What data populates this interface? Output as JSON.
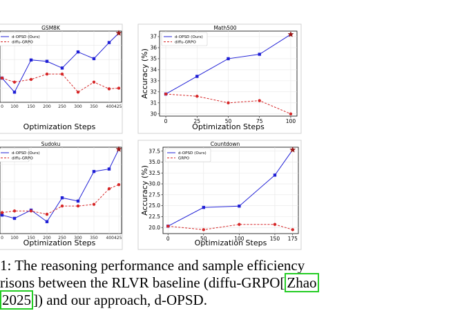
{
  "chart_data": [
    {
      "type": "line",
      "title": "GSM8K",
      "xlabel": "Optimization Steps",
      "ylabel": "",
      "xticks": [
        "0",
        "100",
        "150",
        "200",
        "250",
        "300",
        "350",
        "400",
        "425"
      ],
      "visible_xtick_labels": [
        "0",
        "100",
        "150",
        "200",
        "250",
        "300",
        "350",
        "400425"
      ],
      "xlim": [
        0,
        425
      ],
      "ylim": [
        0,
        100
      ],
      "legend": {
        "placement": "top-left",
        "entries": [
          "d-OPSD (Ours)",
          "diffu-GRPO"
        ]
      },
      "grid": true,
      "series": [
        {
          "name": "d-OPSD (Ours)",
          "color": "#1f1fd6",
          "style": "solid",
          "marker": "square",
          "x": [
            0,
            100,
            150,
            200,
            250,
            300,
            350,
            400,
            425
          ],
          "y": [
            33,
            12,
            60,
            58,
            48,
            72,
            62,
            86,
            100
          ]
        },
        {
          "name": "diffu-GRPO",
          "color": "#d62728",
          "style": "dashed",
          "marker": "circle",
          "x": [
            0,
            100,
            150,
            200,
            250,
            300,
            350,
            400,
            425
          ],
          "y": [
            33,
            27,
            31,
            39,
            39,
            12,
            27,
            17,
            18
          ]
        }
      ]
    },
    {
      "type": "line",
      "title": "Math500",
      "xlabel": "Optimization Steps",
      "ylabel": "Accuracy (%)",
      "xticks": [
        0,
        25,
        50,
        75,
        100
      ],
      "yticks": [
        30,
        31,
        32,
        33,
        34,
        35,
        36,
        37
      ],
      "xlim": [
        -5,
        105
      ],
      "ylim": [
        29.8,
        37.5
      ],
      "legend": {
        "placement": "top-left",
        "entries": [
          "d-OPSD (Ours)",
          "diffu-GRPO"
        ]
      },
      "grid": true,
      "series": [
        {
          "name": "d-OPSD (Ours)",
          "color": "#1f1fd6",
          "style": "solid",
          "marker": "square",
          "x": [
            0,
            25,
            50,
            75,
            100
          ],
          "y": [
            31.8,
            33.4,
            35.0,
            35.4,
            37.2
          ]
        },
        {
          "name": "diffu-GRPO",
          "color": "#d62728",
          "style": "dashed",
          "marker": "circle",
          "x": [
            0,
            25,
            50,
            75,
            100
          ],
          "y": [
            31.8,
            31.6,
            31.0,
            31.2,
            30.0
          ]
        }
      ]
    },
    {
      "type": "line",
      "title": "Sudoku",
      "xlabel": "Optimization Steps",
      "ylabel": "",
      "xticks": [
        "0",
        "100",
        "150",
        "200",
        "250",
        "300",
        "350",
        "400",
        "425"
      ],
      "visible_xtick_labels": [
        "0",
        "100",
        "150",
        "200",
        "250",
        "300",
        "350",
        "400425"
      ],
      "xlim": [
        0,
        425
      ],
      "ylim": [
        0,
        100
      ],
      "legend": {
        "placement": "top-left",
        "entries": [
          "d-OPSD (Ours)",
          "diffu-GRPO"
        ]
      },
      "grid": true,
      "series": [
        {
          "name": "d-OPSD (Ours)",
          "color": "#1f1fd6",
          "style": "solid",
          "marker": "square",
          "x": [
            0,
            100,
            150,
            200,
            250,
            300,
            350,
            400,
            425
          ],
          "y": [
            20,
            16,
            26,
            12,
            41,
            37,
            73,
            76,
            100
          ]
        },
        {
          "name": "diffu-GRPO",
          "color": "#d62728",
          "style": "dashed",
          "marker": "circle",
          "x": [
            0,
            100,
            150,
            200,
            250,
            300,
            350,
            400,
            425
          ],
          "y": [
            23,
            25,
            25,
            21,
            31,
            31,
            33,
            52,
            57
          ]
        }
      ]
    },
    {
      "type": "line",
      "title": "Countdown",
      "xlabel": "Optimization Steps",
      "ylabel": "Accuracy (%)",
      "xticks": [
        0,
        50,
        100,
        150,
        175
      ],
      "yticks": [
        "20.0",
        "22.5",
        "25.0",
        "27.5",
        "30.0",
        "32.5",
        "35.0",
        "37.5"
      ],
      "xlim": [
        -7,
        183
      ],
      "ylim": [
        18.6,
        38.4
      ],
      "legend": {
        "placement": "top-left",
        "entries": [
          "d-OPSD (Ours)",
          "GRPO"
        ]
      },
      "grid": true,
      "series": [
        {
          "name": "d-OPSD (Ours)",
          "color": "#1f1fd6",
          "style": "solid",
          "marker": "square",
          "x": [
            0,
            50,
            100,
            150,
            175
          ],
          "y": [
            20.3,
            24.6,
            24.9,
            32.0,
            37.8
          ]
        },
        {
          "name": "GRPO",
          "color": "#d62728",
          "style": "dashed",
          "marker": "circle",
          "x": [
            0,
            50,
            100,
            150,
            175
          ],
          "y": [
            20.3,
            19.5,
            20.7,
            20.7,
            19.5
          ]
        }
      ]
    }
  ],
  "caption": {
    "line1": "1: The reasoning performance and sample efficiency",
    "line2_a": "risons between the RLVR baseline (diffu-GRPO[",
    "line2_cite": "Zhao",
    "line3_cite": "2025",
    "line3_b": "]) and our approach, d-OPSD."
  }
}
